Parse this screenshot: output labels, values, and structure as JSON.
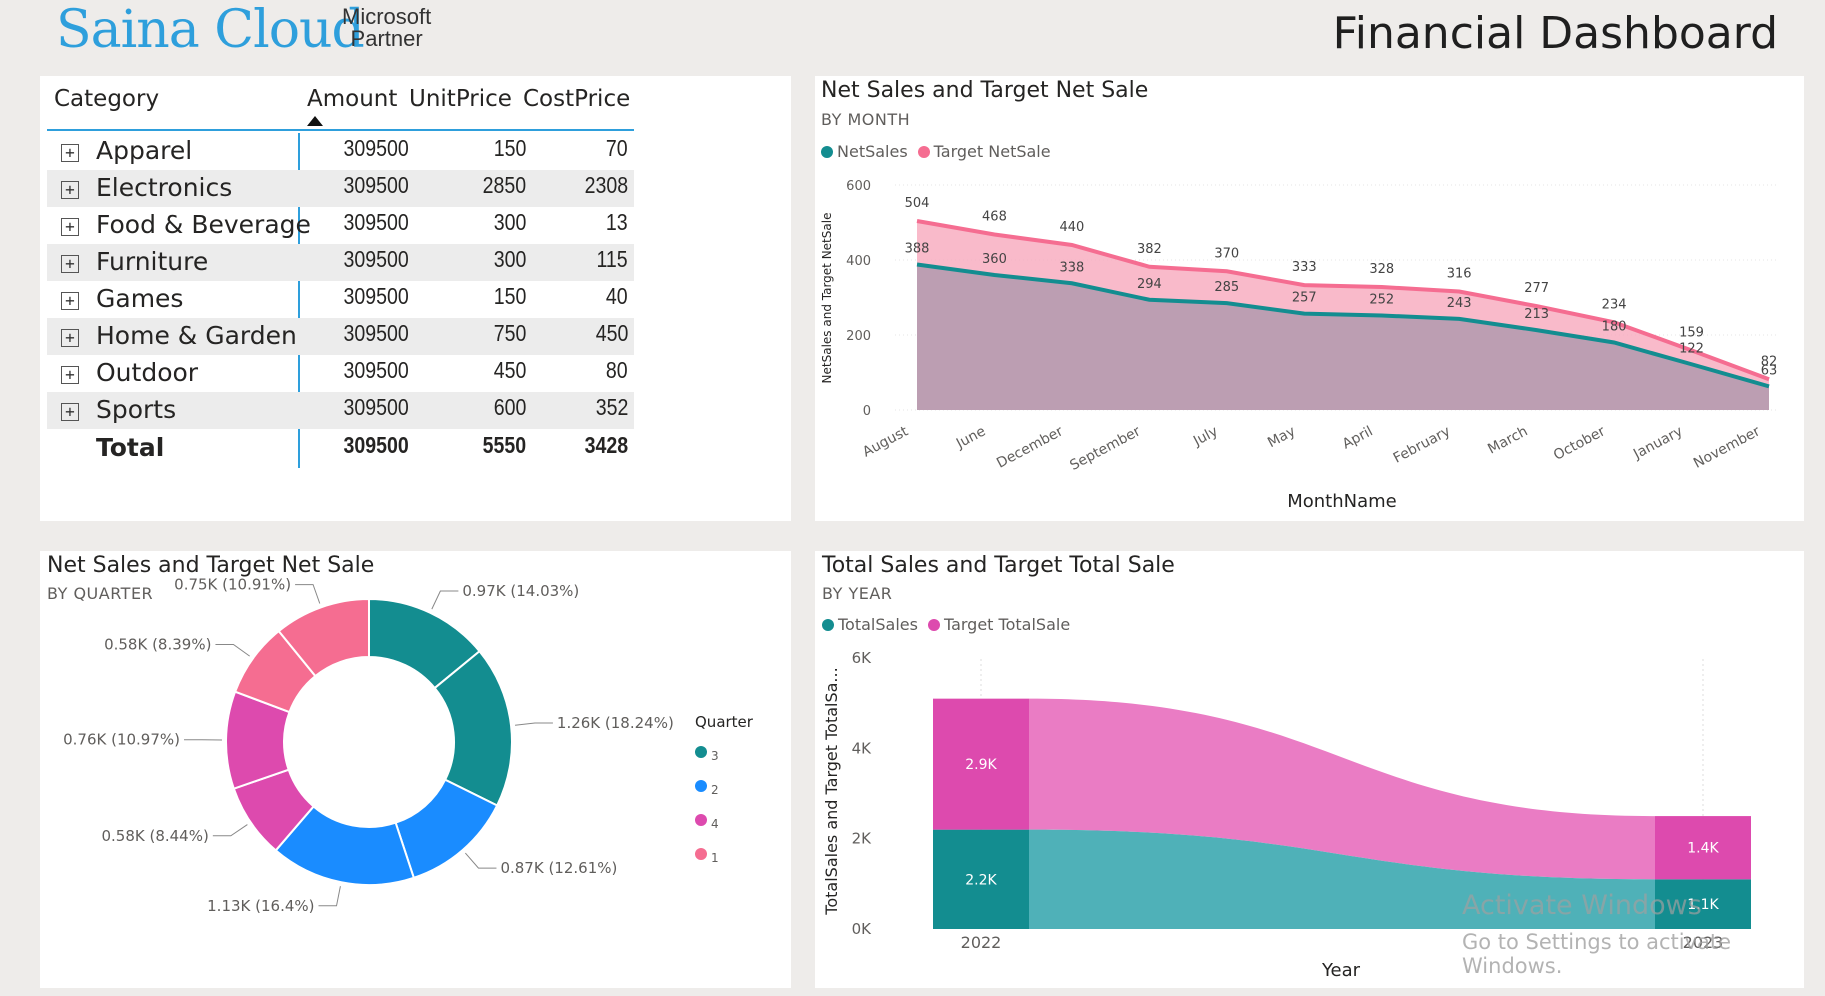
{
  "header": {
    "logo_text": "Saina Cloud",
    "partner_line1": "Microsoft",
    "partner_line2": "Partner",
    "dashboard_title": "Financial Dashboard"
  },
  "watermark": {
    "line1": "Activate Windows",
    "line2": "Go to Settings to activate Windows."
  },
  "table": {
    "headers": {
      "category": "Category",
      "amount": "Amount",
      "unit_price": "UnitPrice",
      "cost_price": "CostPrice"
    },
    "rows": [
      {
        "category": "Apparel",
        "amount": "309500",
        "unit_price": "150",
        "cost_price": "70"
      },
      {
        "category": "Electronics",
        "amount": "309500",
        "unit_price": "2850",
        "cost_price": "2308"
      },
      {
        "category": "Food & Beverage",
        "amount": "309500",
        "unit_price": "300",
        "cost_price": "13"
      },
      {
        "category": "Furniture",
        "amount": "309500",
        "unit_price": "300",
        "cost_price": "115"
      },
      {
        "category": "Games",
        "amount": "309500",
        "unit_price": "150",
        "cost_price": "40"
      },
      {
        "category": "Home & Garden",
        "amount": "309500",
        "unit_price": "750",
        "cost_price": "450"
      },
      {
        "category": "Outdoor",
        "amount": "309500",
        "unit_price": "450",
        "cost_price": "80"
      },
      {
        "category": "Sports",
        "amount": "309500",
        "unit_price": "600",
        "cost_price": "352"
      }
    ],
    "total": {
      "category": "Total",
      "amount": "309500",
      "unit_price": "5550",
      "cost_price": "3428"
    }
  },
  "chart_data": [
    {
      "type": "area",
      "title": "Net Sales and Target Net Sale",
      "subtitle": "BY MONTH",
      "xlabel": "MonthName",
      "ylabel": "NetSales and Target NetSale",
      "ylim": [
        0,
        600
      ],
      "yticks": [
        "0",
        "200",
        "400",
        "600"
      ],
      "categories": [
        "August",
        "June",
        "December",
        "September",
        "July",
        "May",
        "April",
        "February",
        "March",
        "October",
        "January",
        "November"
      ],
      "series": [
        {
          "name": "NetSales",
          "values": [
            388,
            360,
            338,
            294,
            285,
            257,
            252,
            243,
            213,
            180,
            122,
            63
          ],
          "color": "#138d90"
        },
        {
          "name": "Target NetSale",
          "values": [
            504,
            468,
            440,
            382,
            370,
            333,
            328,
            316,
            277,
            234,
            159,
            82
          ],
          "color": "#f56d91"
        }
      ],
      "legend": "top-left"
    },
    {
      "type": "pie",
      "title": "Net Sales and Target Net Sale",
      "subtitle": "BY QUARTER",
      "legend_title": "Quarter",
      "legend": [
        {
          "label": "3",
          "color": "#138d90"
        },
        {
          "label": "2",
          "color": "#1a8cff"
        },
        {
          "label": "4",
          "color": "#dd4aae"
        },
        {
          "label": "1",
          "color": "#f56d91"
        }
      ],
      "slices": [
        {
          "quarter": "3",
          "value": 0.97,
          "label": "0.97K (14.03%)",
          "color": "#138d90"
        },
        {
          "quarter": "3",
          "value": 1.26,
          "label": "1.26K (18.24%)",
          "color": "#138d90"
        },
        {
          "quarter": "2",
          "value": 0.87,
          "label": "0.87K (12.61%)",
          "color": "#1a8cff"
        },
        {
          "quarter": "2",
          "value": 1.13,
          "label": "1.13K (16.4%)",
          "color": "#1a8cff"
        },
        {
          "quarter": "4",
          "value": 0.58,
          "label": "0.58K (8.44%)",
          "color": "#dd4aae"
        },
        {
          "quarter": "4",
          "value": 0.76,
          "label": "0.76K (10.97%)",
          "color": "#dd4aae"
        },
        {
          "quarter": "1",
          "value": 0.58,
          "label": "0.58K (8.39%)",
          "color": "#f56d91"
        },
        {
          "quarter": "1",
          "value": 0.75,
          "label": "0.75K (10.91%)",
          "color": "#f56d91"
        }
      ]
    },
    {
      "type": "bar",
      "stacked": true,
      "ribbon": true,
      "title": "Total Sales and Target Total Sale",
      "subtitle": "BY YEAR",
      "xlabel": "Year",
      "ylabel": "TotalSales and Target TotalSa...",
      "ylim": [
        0,
        6000
      ],
      "yticks": [
        "0K",
        "2K",
        "4K",
        "6K"
      ],
      "categories": [
        "2022",
        "2023"
      ],
      "series": [
        {
          "name": "TotalSales",
          "values": [
            2200,
            1100
          ],
          "labels": [
            "2.2K",
            "1.1K"
          ],
          "color": "#138d90"
        },
        {
          "name": "Target TotalSale",
          "values": [
            2900,
            1400
          ],
          "labels": [
            "2.9K",
            "1.4K"
          ],
          "color": "#dd4aae"
        }
      ],
      "legend": "top-left"
    }
  ]
}
